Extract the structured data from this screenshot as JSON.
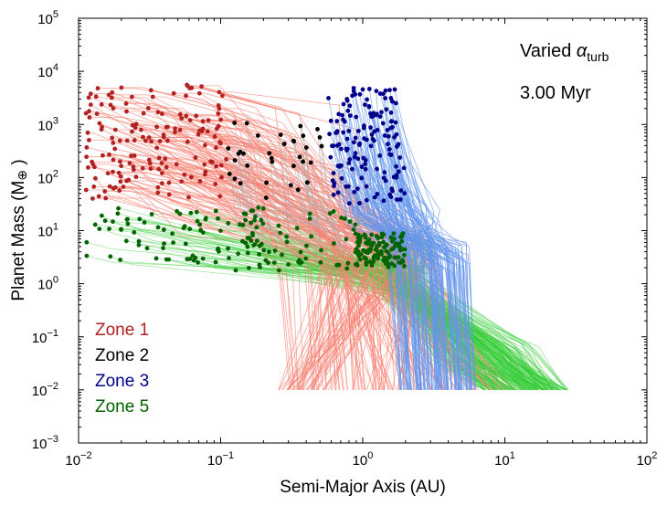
{
  "chart_data": {
    "type": "scatter",
    "xscale": "log",
    "yscale": "log",
    "xlim": [
      0.01,
      100
    ],
    "ylim": [
      0.001,
      100000
    ],
    "xlabel": "Semi-Major Axis (AU)",
    "ylabel_main": "Planet Mass (M",
    "ylabel_symbol": "⊕",
    "ylabel_close": " )",
    "xticks": [
      {
        "value": 0.01,
        "base": "10",
        "exp": "−2"
      },
      {
        "value": 0.1,
        "base": "10",
        "exp": "−1"
      },
      {
        "value": 1,
        "base": "10",
        "exp": "0"
      },
      {
        "value": 10,
        "base": "10",
        "exp": "1"
      },
      {
        "value": 100,
        "base": "10",
        "exp": "2"
      }
    ],
    "yticks": [
      {
        "value": 0.001,
        "base": "10",
        "exp": "−3"
      },
      {
        "value": 0.01,
        "base": "10",
        "exp": "−2"
      },
      {
        "value": 0.1,
        "base": "10",
        "exp": "−1"
      },
      {
        "value": 1,
        "base": "10",
        "exp": "0"
      },
      {
        "value": 10,
        "base": "10",
        "exp": "1"
      },
      {
        "value": 100,
        "base": "10",
        "exp": "2"
      },
      {
        "value": 1000,
        "base": "10",
        "exp": "3"
      },
      {
        "value": 10000,
        "base": "10",
        "exp": "4"
      },
      {
        "value": 100000,
        "base": "10",
        "exp": "5"
      }
    ],
    "annotation_prefix": "Varied ",
    "annotation_symbol": "α",
    "annotation_subscript": "turb",
    "time_label": "3.00 Myr",
    "legend": [
      {
        "label": "Zone 1",
        "color": "#b22222"
      },
      {
        "label": "Zone 2",
        "color": "#000000"
      },
      {
        "label": "Zone 3",
        "color": "#00008b"
      },
      {
        "label": "Zone 5",
        "color": "#006400"
      }
    ],
    "series": [
      {
        "name": "Zone 1",
        "track_color": "#fa8072",
        "point_color": "#b22222",
        "n": 160,
        "final_a": {
          "log_min": -1.95,
          "log_max": -0.95
        },
        "final_m": {
          "log_min": 1.6,
          "log_max": 3.8
        }
      },
      {
        "name": "Zone 2",
        "track_color": "#b0b0b0",
        "point_color": "#000000",
        "n": 35,
        "final_a": {
          "log_min": -0.95,
          "log_max": -0.25
        },
        "final_m": {
          "log_min": 1.6,
          "log_max": 3.1
        }
      },
      {
        "name": "Zone 3",
        "track_color": "#6495ed",
        "point_color": "#00008b",
        "n": 150,
        "final_a": {
          "log_min": -0.25,
          "log_max": 0.3
        },
        "final_m": {
          "log_min": 1.5,
          "log_max": 3.7
        }
      },
      {
        "name": "Zone 5",
        "track_color": "#32cd32",
        "point_color": "#006400",
        "n": 260,
        "final_a": {
          "log_min": -1.95,
          "log_max": 0.3
        },
        "final_m": {
          "log_min": 0.2,
          "log_max": 1.5
        }
      }
    ]
  }
}
